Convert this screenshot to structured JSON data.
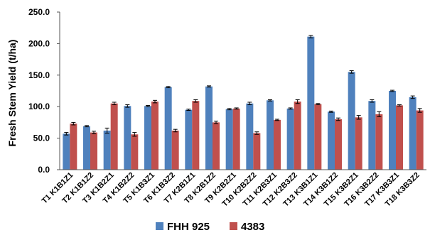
{
  "chart_data": {
    "type": "bar",
    "title": "",
    "xlabel": "",
    "ylabel": "Fresh Stem Yield (t/ha)",
    "ylim": [
      0,
      250
    ],
    "yticks": [
      "0.0",
      "50.0",
      "100.0",
      "150.0",
      "200.0",
      "250.0"
    ],
    "grid": false,
    "legend_position": "bottom",
    "categories": [
      "T1 K1B1Z1",
      "T2 K1B1Z2",
      "T3 K1B2Z1",
      "T4 K1B2Z2",
      "T5 K1B3Z1",
      "T6 K1B3Z2",
      "T7 K2B1Z1",
      "T8 K2B1Z2",
      "T9 K2B2Z1",
      "T10 K2B2Z2",
      "T11 K2B3Z1",
      "T12 K2B3Z2",
      "T13 K3B1Z1",
      "T14 K3B1Z2",
      "T15 K3B2Z1",
      "T16 K3B2Z2",
      "T17 K3B3Z1",
      "T18 K3B3Z2"
    ],
    "series": [
      {
        "name": "FHH 925",
        "color": "#4f81bd",
        "values": [
          57,
          69,
          62,
          101,
          101,
          131,
          95,
          132,
          96,
          105,
          110,
          97,
          211,
          92,
          155,
          109,
          125,
          115
        ],
        "errors": [
          2,
          1,
          4,
          2,
          1,
          1,
          1,
          1,
          1,
          2,
          1,
          1,
          2,
          1,
          2,
          2,
          1,
          2
        ]
      },
      {
        "name": "4383",
        "color": "#c0504d",
        "values": [
          73,
          59,
          105,
          56,
          108,
          62,
          109,
          75,
          97,
          58,
          79,
          108,
          104,
          80,
          83,
          88,
          102,
          94
        ],
        "errors": [
          2,
          2,
          2,
          3,
          2,
          2,
          2,
          2,
          1,
          2,
          1,
          3,
          1,
          2,
          3,
          4,
          1,
          3
        ]
      }
    ]
  }
}
